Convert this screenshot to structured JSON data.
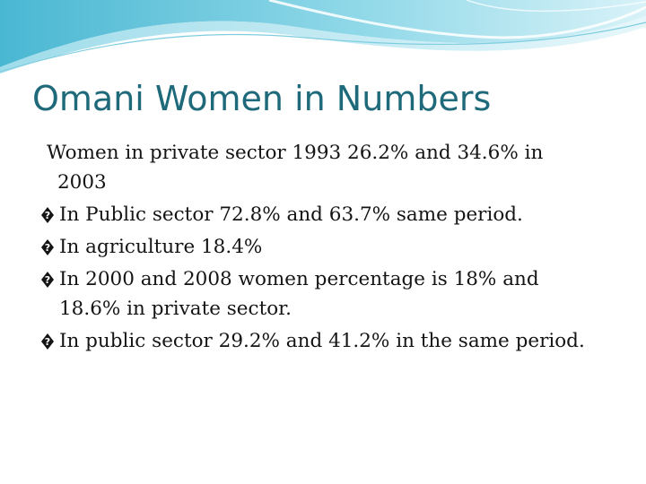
{
  "slide": {
    "title": "Omani Women in Numbers",
    "bullet_glyph": "replacement-character-icon",
    "paragraphs": [
      {
        "line1": "Women in private sector 1993   26.2%  and 34.6% in",
        "line2": "2003",
        "has_bullet": false
      },
      {
        "line1": "In Public sector   72.8%   and 63.7% same period.",
        "line2": "",
        "has_bullet": true
      },
      {
        "line1": "In agriculture 18.4%",
        "line2": "",
        "has_bullet": true
      },
      {
        "line1": "In 2000 and 2008  women percentage is 18% and",
        "line2": "18.6% in private sector.",
        "has_bullet": true
      },
      {
        "line1": "In public sector 29.2% and 41.2% in the same period.",
        "line2": "",
        "has_bullet": true
      }
    ]
  },
  "colors": {
    "title": "#1e6a7a",
    "text": "#141414",
    "wave_light": "#cfeef5",
    "wave_mid": "#8fd5e6",
    "wave_dark": "#3fb0cc"
  }
}
